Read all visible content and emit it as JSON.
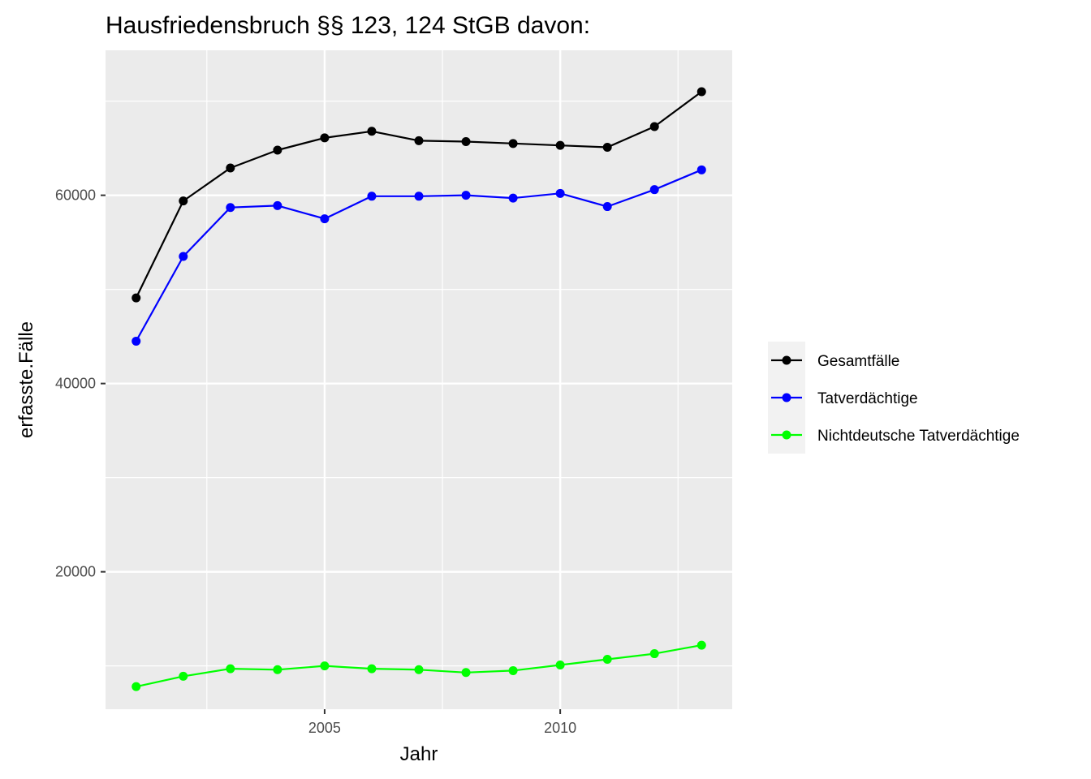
{
  "chart_data": {
    "type": "line",
    "title": "Hausfriedensbruch §§ 123, 124 StGB davon:",
    "xlabel": "Jahr",
    "ylabel": "erfasste.Fälle",
    "x": [
      2001,
      2002,
      2003,
      2004,
      2005,
      2006,
      2007,
      2008,
      2009,
      2010,
      2011,
      2012,
      2013
    ],
    "xlim": [
      2000.35,
      2013.65
    ],
    "ylim": [
      5400,
      75400
    ],
    "x_ticks": [
      2005,
      2010
    ],
    "y_ticks": [
      20000,
      40000,
      60000
    ],
    "x_tick_labels": [
      "2005",
      "2010"
    ],
    "y_tick_labels": [
      "20000",
      "40000",
      "60000"
    ],
    "grid": true,
    "legend_position": "right",
    "series": [
      {
        "name": "Gesamtfälle",
        "color": "#000000",
        "values": [
          49100,
          59400,
          62900,
          64800,
          66100,
          66800,
          65800,
          65700,
          65500,
          65300,
          65100,
          67300,
          71000
        ]
      },
      {
        "name": "Tatverdächtige",
        "color": "#0000ff",
        "values": [
          44500,
          53500,
          58700,
          58900,
          57500,
          59900,
          59900,
          60000,
          59700,
          60200,
          58800,
          60600,
          62700
        ]
      },
      {
        "name": "Nichtdeutsche Tatverdächtige",
        "color": "#00ff00",
        "values": [
          7800,
          8900,
          9700,
          9600,
          10000,
          9700,
          9600,
          9300,
          9500,
          10100,
          10700,
          11300,
          12200
        ]
      }
    ]
  }
}
